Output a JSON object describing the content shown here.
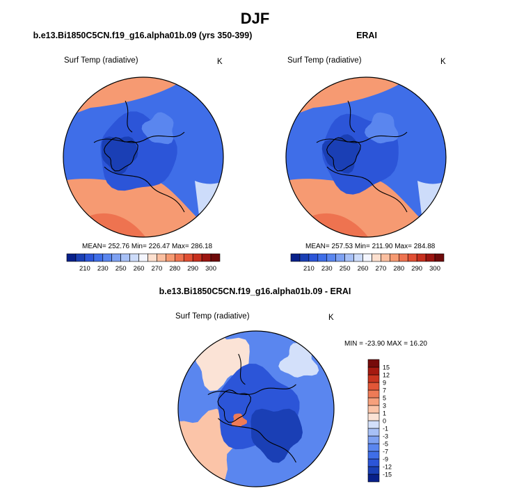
{
  "figure": {
    "title": "DJF"
  },
  "chart_data": [
    {
      "type": "heatmap",
      "projection": "polar-stereographic (Northern Hemisphere)",
      "title": "b.e13.Bi1850C5CN.f19_g16.alpha01b.09 (yrs 350-399)",
      "variable": "Surf Temp (radiative)",
      "units": "K",
      "stats": {
        "mean": 252.76,
        "min": 226.47,
        "max": 286.18
      },
      "stats_text": "MEAN= 252.76  Min= 226.47  Max= 286.18",
      "colorbar": {
        "orientation": "horizontal",
        "levels": [
          205,
          210,
          220,
          230,
          240,
          250,
          255,
          260,
          265,
          270,
          275,
          280,
          285,
          290,
          295,
          300
        ],
        "tick_labels": [
          "210",
          "230",
          "250",
          "260",
          "270",
          "280",
          "290",
          "300"
        ],
        "colors": [
          "#08208a",
          "#1a3fb5",
          "#2c55d8",
          "#3f6ee8",
          "#5a86ef",
          "#7ea1f2",
          "#a7c0f6",
          "#cddcfa",
          "#f4f6ff",
          "#fde0cf",
          "#fbbfa0",
          "#f69a72",
          "#ee7350",
          "#e14f33",
          "#c7301e",
          "#9c1510",
          "#6e0a0a"
        ]
      }
    },
    {
      "type": "heatmap",
      "projection": "polar-stereographic (Northern Hemisphere)",
      "title": "ERAI",
      "variable": "Surf Temp (radiative)",
      "units": "K",
      "stats": {
        "mean": 257.53,
        "min": 211.9,
        "max": 284.88
      },
      "stats_text": "MEAN= 257.53  Min= 211.90  Max= 284.88",
      "colorbar": {
        "orientation": "horizontal",
        "levels": [
          205,
          210,
          220,
          230,
          240,
          250,
          255,
          260,
          265,
          270,
          275,
          280,
          285,
          290,
          295,
          300
        ],
        "tick_labels": [
          "210",
          "230",
          "250",
          "260",
          "270",
          "280",
          "290",
          "300"
        ],
        "colors": [
          "#08208a",
          "#1a3fb5",
          "#2c55d8",
          "#3f6ee8",
          "#5a86ef",
          "#7ea1f2",
          "#a7c0f6",
          "#cddcfa",
          "#f4f6ff",
          "#fde0cf",
          "#fbbfa0",
          "#f69a72",
          "#ee7350",
          "#e14f33",
          "#c7301e",
          "#9c1510",
          "#6e0a0a"
        ]
      }
    },
    {
      "type": "heatmap",
      "projection": "polar-stereographic (Northern Hemisphere)",
      "title": "b.e13.Bi1850C5CN.f19_g16.alpha01b.09 - ERAI",
      "variable": "Surf Temp (radiative)",
      "units": "K",
      "stats": {
        "min": -23.9,
        "max": 16.2
      },
      "stats_text": "MIN = -23.90 MAX =  16.20",
      "colorbar": {
        "orientation": "vertical",
        "levels": [
          -15,
          -12,
          -9,
          -7,
          -5,
          -3,
          -1,
          0,
          1,
          3,
          5,
          7,
          9,
          12,
          15
        ],
        "tick_labels": [
          "-15",
          "-12",
          "-9",
          "-7",
          "-5",
          "-3",
          "-1",
          "0",
          "1",
          "3",
          "5",
          "7",
          "9",
          "12",
          "15"
        ],
        "colors": [
          "#08208a",
          "#1a3fb5",
          "#2c55d8",
          "#3f6ee8",
          "#5a86ef",
          "#7ea1f2",
          "#a7c0f6",
          "#d3e0fa",
          "#fbe3d6",
          "#fbc4a8",
          "#f6a07c",
          "#ee7b57",
          "#e25637",
          "#c93520",
          "#a51a11",
          "#760b0b"
        ]
      }
    }
  ]
}
